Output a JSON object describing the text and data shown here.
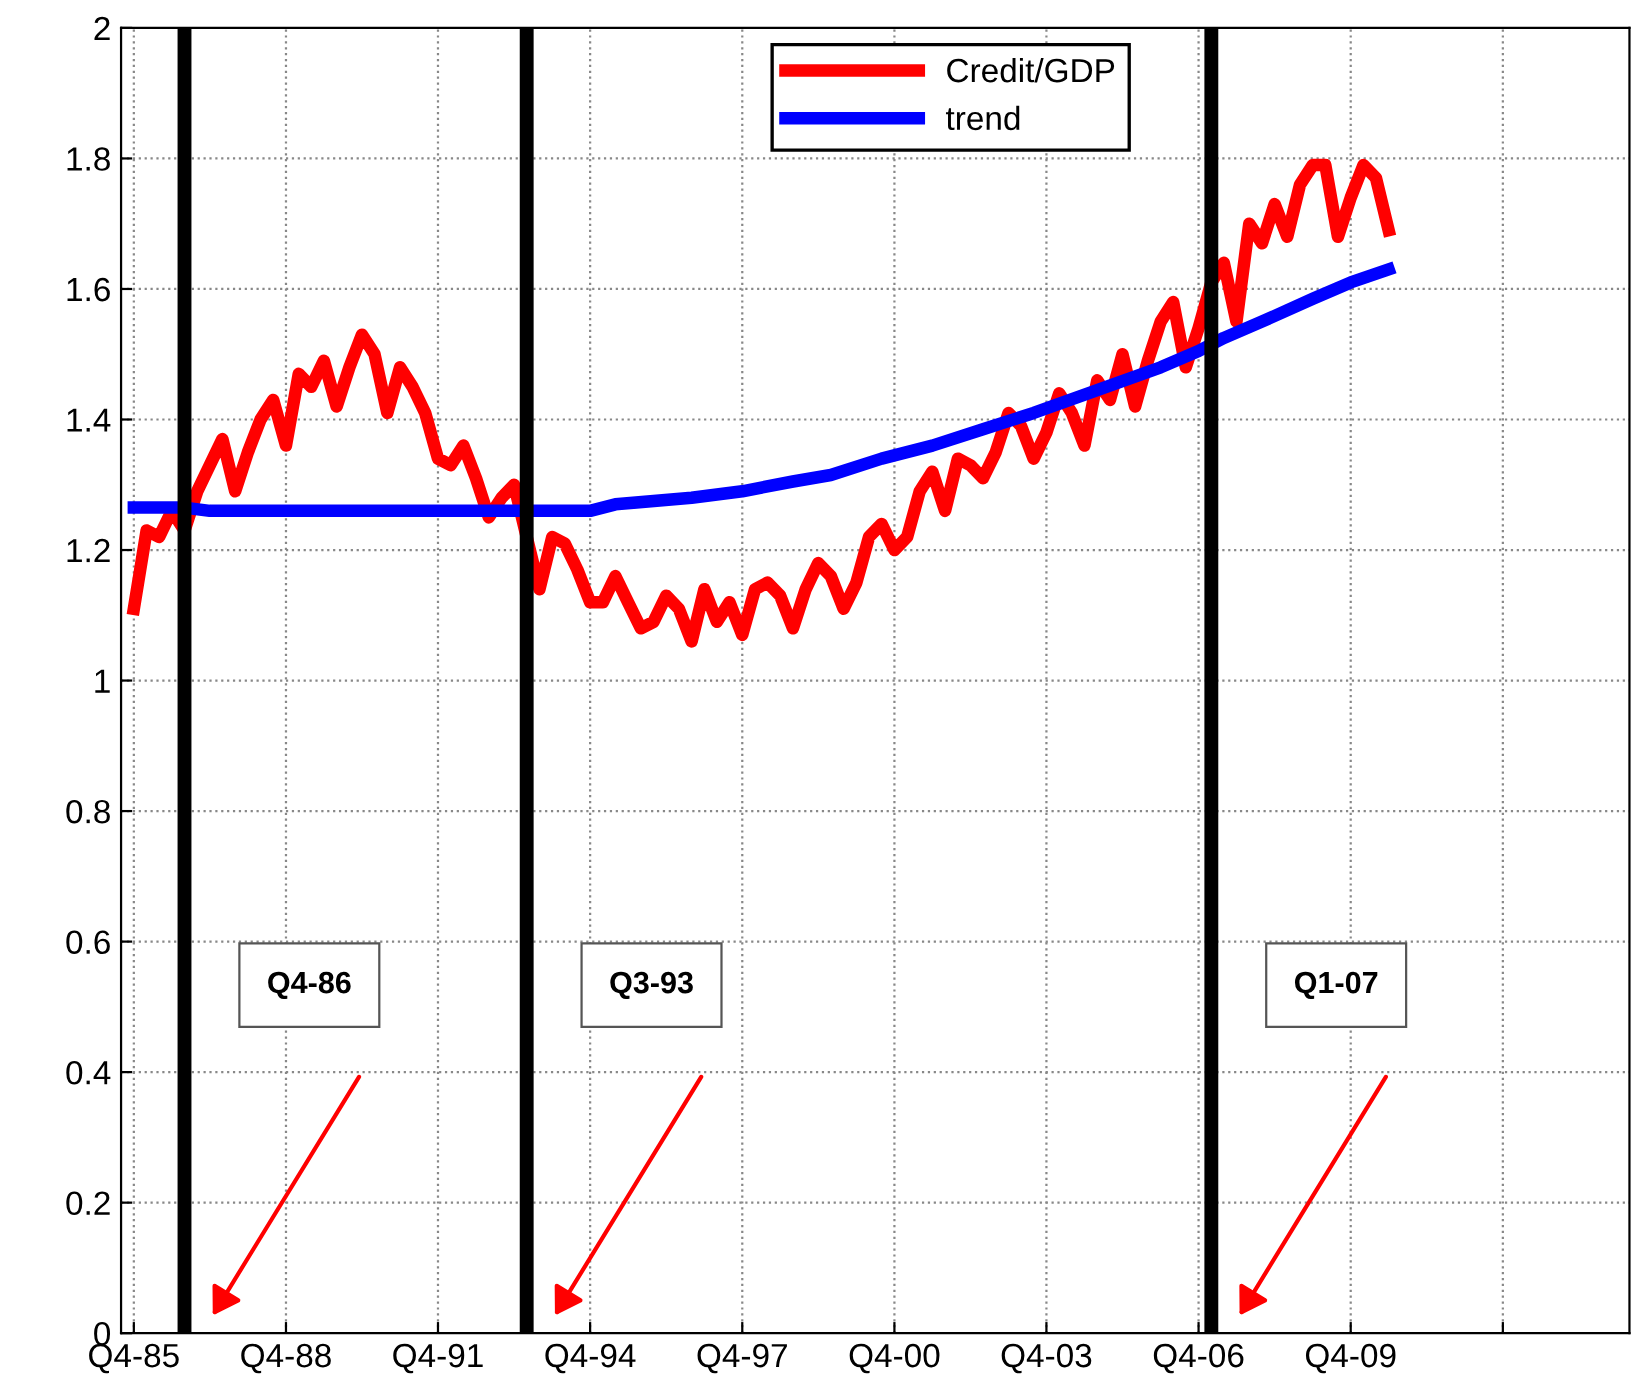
{
  "chart_data": {
    "type": "line",
    "xlim": [
      "1985-07",
      "2015-04"
    ],
    "ylim": [
      0,
      2
    ],
    "xticks": [
      {
        "value": "1985-10",
        "label": "Q4-85"
      },
      {
        "value": "1988-10",
        "label": "Q4-88"
      },
      {
        "value": "1991-10",
        "label": "Q4-91"
      },
      {
        "value": "1994-10",
        "label": "Q4-94"
      },
      {
        "value": "1997-10",
        "label": "Q4-97"
      },
      {
        "value": "2000-10",
        "label": "Q4-00"
      },
      {
        "value": "2003-10",
        "label": "Q4-03"
      },
      {
        "value": "2006-10",
        "label": "Q4-06"
      },
      {
        "value": "2009-10",
        "label": "Q4-09"
      },
      {
        "value": "2012-10",
        "label": null
      }
    ],
    "yticks": [
      0,
      0.2,
      0.4,
      0.6,
      0.8,
      1,
      1.2,
      1.4,
      1.6,
      1.8,
      2
    ],
    "grid": true,
    "legend": "top",
    "line_style": "solid",
    "marker": "none",
    "series": [
      {
        "name": "Credit/GDP",
        "color": "#ff0000",
        "x": [
          "1985-10",
          "1986-01",
          "1986-04",
          "1986-07",
          "1986-10",
          "1987-01",
          "1987-04",
          "1987-07",
          "1987-10",
          "1988-01",
          "1988-04",
          "1988-07",
          "1988-10",
          "1989-01",
          "1989-04",
          "1989-07",
          "1989-10",
          "1990-01",
          "1990-04",
          "1990-07",
          "1990-10",
          "1991-01",
          "1991-04",
          "1991-07",
          "1991-10",
          "1992-01",
          "1992-04",
          "1992-07",
          "1992-10",
          "1993-01",
          "1993-04",
          "1993-07",
          "1993-10",
          "1994-01",
          "1994-04",
          "1994-07",
          "1994-10",
          "1995-01",
          "1995-04",
          "1995-07",
          "1995-10",
          "1996-01",
          "1996-04",
          "1996-07",
          "1996-10",
          "1997-01",
          "1997-04",
          "1997-07",
          "1997-10",
          "1998-01",
          "1998-04",
          "1998-07",
          "1998-10",
          "1999-01",
          "1999-04",
          "1999-07",
          "1999-10",
          "2000-01",
          "2000-04",
          "2000-07",
          "2000-10",
          "2001-01",
          "2001-04",
          "2001-07",
          "2001-10",
          "2002-01",
          "2002-04",
          "2002-07",
          "2002-10",
          "2003-01",
          "2003-04",
          "2003-07",
          "2003-10",
          "2004-01",
          "2004-04",
          "2004-07",
          "2004-10",
          "2005-01",
          "2005-04",
          "2005-07",
          "2005-10",
          "2006-01",
          "2006-04",
          "2006-07",
          "2006-10",
          "2007-01",
          "2007-04",
          "2007-07",
          "2007-10",
          "2008-01",
          "2008-04",
          "2008-07",
          "2008-10",
          "2009-01",
          "2009-04",
          "2009-07",
          "2009-10",
          "2010-01",
          "2010-04",
          "2010-07"
        ],
        "values": [
          1.11,
          1.23,
          1.22,
          1.26,
          1.23,
          1.29,
          1.33,
          1.37,
          1.29,
          1.35,
          1.4,
          1.43,
          1.36,
          1.47,
          1.45,
          1.49,
          1.42,
          1.48,
          1.53,
          1.5,
          1.41,
          1.48,
          1.45,
          1.41,
          1.34,
          1.33,
          1.36,
          1.31,
          1.25,
          1.28,
          1.3,
          1.22,
          1.14,
          1.22,
          1.21,
          1.17,
          1.12,
          1.12,
          1.16,
          1.12,
          1.08,
          1.09,
          1.13,
          1.11,
          1.06,
          1.14,
          1.09,
          1.12,
          1.07,
          1.14,
          1.15,
          1.13,
          1.08,
          1.14,
          1.18,
          1.16,
          1.11,
          1.15,
          1.22,
          1.24,
          1.2,
          1.22,
          1.29,
          1.32,
          1.26,
          1.34,
          1.33,
          1.31,
          1.35,
          1.41,
          1.39,
          1.34,
          1.38,
          1.44,
          1.41,
          1.36,
          1.46,
          1.43,
          1.5,
          1.42,
          1.49,
          1.55,
          1.58,
          1.48,
          1.54,
          1.61,
          1.64,
          1.55,
          1.7,
          1.67,
          1.73,
          1.68,
          1.76,
          1.79,
          1.79,
          1.68,
          1.74,
          1.79,
          1.77,
          1.69
        ]
      },
      {
        "name": "trend",
        "color": "#0000ff",
        "x": [
          "1985-10",
          "1986-10",
          "1987-04",
          "1994-10",
          "1995-04",
          "1996-10",
          "1997-10",
          "1998-10",
          "1999-07",
          "2000-07",
          "2001-07",
          "2002-07",
          "2003-07",
          "2004-10",
          "2006-01",
          "2006-10",
          "2007-04",
          "2008-01",
          "2009-01",
          "2009-10",
          "2010-07"
        ],
        "values": [
          1.265,
          1.265,
          1.26,
          1.26,
          1.27,
          1.28,
          1.29,
          1.305,
          1.315,
          1.34,
          1.36,
          1.385,
          1.41,
          1.445,
          1.48,
          1.505,
          1.525,
          1.55,
          1.585,
          1.61,
          1.63
        ]
      }
    ],
    "ref_lines": [
      {
        "axis": "x",
        "value": "1986-10",
        "label": "Q4-86",
        "color": "#000000"
      },
      {
        "axis": "x",
        "value": "1993-07",
        "label": "Q3-93",
        "color": "#000000"
      },
      {
        "axis": "x",
        "value": "2007-01",
        "label": "Q1-07",
        "color": "#000000"
      }
    ]
  }
}
